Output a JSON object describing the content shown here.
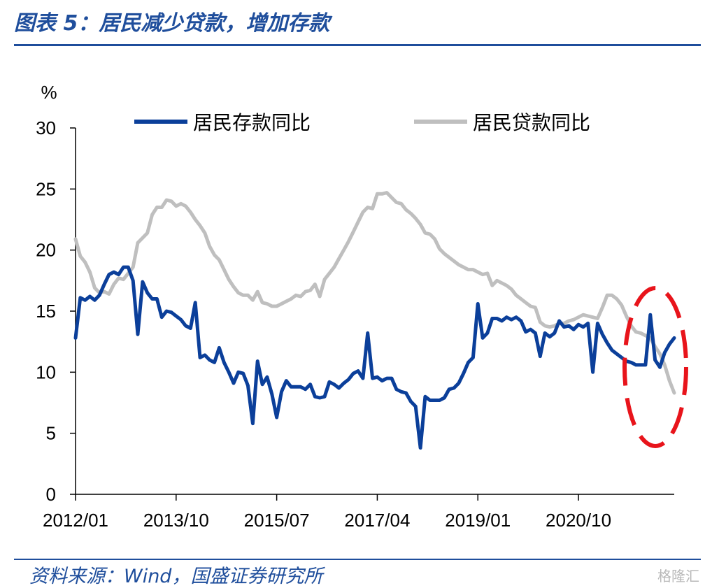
{
  "header": {
    "title": "图表 5：居民减少贷款，增加存款"
  },
  "footer": {
    "source": "资料来源：Wind，国盛证券研究所",
    "watermark": "格隆汇"
  },
  "chart_data": {
    "type": "line",
    "title": "图表 5：居民减少贷款，增加存款",
    "ylabel": "%",
    "ylim": [
      0,
      30
    ],
    "yticks": [
      0,
      5,
      10,
      15,
      20,
      25,
      30
    ],
    "x_tick_labels": [
      "2012/01",
      "2013/10",
      "2015/07",
      "2017/04",
      "2019/01",
      "2020/10"
    ],
    "x_tick_positions": [
      0,
      21,
      42,
      63,
      84,
      105
    ],
    "x_range": [
      0,
      125
    ],
    "legend_position": "top",
    "colors": {
      "deposit": "#0b3f9a",
      "loan": "#bfbfbf",
      "highlight": "#e8141b",
      "accent": "#1f4e9c"
    },
    "series": [
      {
        "name": "居民存款同比",
        "x": [
          0,
          1,
          2,
          3,
          4,
          5,
          6,
          7,
          8,
          9,
          10,
          11,
          12,
          13,
          14,
          15,
          16,
          17,
          18,
          19,
          20,
          21,
          22,
          23,
          24,
          25,
          26,
          27,
          28,
          29,
          30,
          31,
          32,
          33,
          34,
          35,
          36,
          37,
          38,
          39,
          40,
          41,
          42,
          43,
          44,
          45,
          46,
          47,
          48,
          49,
          50,
          51,
          52,
          53,
          54,
          55,
          56,
          57,
          58,
          59,
          60,
          61,
          62,
          63,
          64,
          65,
          66,
          67,
          68,
          69,
          70,
          71,
          72,
          73,
          74,
          75,
          76,
          77,
          78,
          79,
          80,
          81,
          82,
          83,
          84,
          85,
          86,
          87,
          88,
          89,
          90,
          91,
          92,
          93,
          94,
          95,
          96,
          97,
          98,
          99,
          100,
          101,
          102,
          103,
          104,
          105,
          106,
          107,
          108,
          109,
          110,
          111,
          112,
          113,
          114,
          115,
          116,
          117,
          118,
          119,
          120,
          121,
          122,
          123,
          124,
          125
        ],
        "values": [
          12.8,
          16.1,
          15.9,
          16.2,
          15.9,
          16.3,
          17.2,
          18.0,
          18.2,
          18.0,
          18.6,
          18.6,
          17.5,
          13.1,
          17.4,
          16.5,
          16.0,
          16.0,
          14.5,
          15.0,
          14.9,
          14.6,
          14.3,
          13.8,
          13.6,
          15.7,
          11.2,
          11.4,
          11.0,
          10.8,
          12.0,
          10.8,
          10.0,
          9.1,
          10.0,
          9.9,
          8.9,
          5.8,
          10.9,
          9.0,
          9.6,
          8.2,
          6.3,
          8.4,
          9.3,
          8.8,
          8.8,
          8.8,
          8.6,
          9.0,
          8.0,
          7.9,
          8.0,
          9.2,
          9.0,
          8.7,
          9.1,
          9.4,
          9.9,
          10.1,
          9.5,
          13.2,
          9.5,
          9.6,
          9.3,
          9.5,
          9.5,
          8.6,
          8.4,
          8.3,
          7.6,
          7.2,
          3.8,
          8.0,
          7.7,
          7.7,
          7.7,
          7.9,
          8.6,
          8.7,
          9.1,
          9.9,
          10.8,
          11.2,
          15.6,
          12.8,
          13.2,
          14.4,
          14.4,
          14.2,
          14.5,
          14.3,
          14.5,
          14.2,
          13.3,
          13.5,
          13.2,
          11.3,
          13.2,
          12.9,
          13.2,
          14.2,
          13.7,
          13.8,
          13.5,
          13.9,
          13.7,
          14.0,
          10.0,
          14.0,
          13.1,
          12.4,
          11.8,
          11.5,
          11.2,
          10.9,
          10.8,
          10.6,
          10.6,
          10.6,
          14.7,
          11.0,
          10.4,
          11.6,
          12.3,
          12.8
        ]
      },
      {
        "name": "居民贷款同比",
        "x": [
          0,
          1,
          2,
          3,
          4,
          5,
          6,
          7,
          8,
          9,
          10,
          11,
          12,
          13,
          14,
          15,
          16,
          17,
          18,
          19,
          20,
          21,
          22,
          23,
          24,
          25,
          26,
          27,
          28,
          29,
          30,
          31,
          32,
          33,
          34,
          35,
          36,
          37,
          38,
          39,
          40,
          41,
          42,
          43,
          44,
          45,
          46,
          47,
          48,
          49,
          50,
          51,
          52,
          53,
          54,
          55,
          56,
          57,
          58,
          59,
          60,
          61,
          62,
          63,
          64,
          65,
          66,
          67,
          68,
          69,
          70,
          71,
          72,
          73,
          74,
          75,
          76,
          77,
          78,
          79,
          80,
          81,
          82,
          83,
          84,
          85,
          86,
          87,
          88,
          89,
          90,
          91,
          92,
          93,
          94,
          95,
          96,
          97,
          98,
          99,
          100,
          101,
          102,
          103,
          104,
          105,
          106,
          107,
          108,
          109,
          110,
          111,
          112,
          113,
          114,
          115,
          116,
          117,
          118,
          119,
          120,
          121,
          122,
          123,
          124,
          125
        ],
        "values": [
          20.9,
          19.5,
          19.0,
          18.2,
          16.9,
          16.5,
          16.6,
          16.4,
          17.2,
          17.7,
          17.6,
          18.1,
          18.6,
          20.6,
          21.0,
          21.4,
          22.9,
          23.5,
          23.5,
          24.1,
          24.0,
          23.6,
          23.8,
          23.6,
          23.1,
          22.5,
          22.0,
          21.4,
          20.3,
          19.6,
          19.2,
          18.4,
          17.6,
          17.0,
          16.5,
          16.3,
          16.3,
          15.9,
          16.6,
          15.7,
          15.6,
          15.4,
          15.4,
          15.6,
          15.8,
          16.0,
          16.3,
          16.2,
          16.6,
          16.7,
          17.2,
          16.2,
          17.6,
          18.1,
          18.6,
          19.3,
          20.0,
          20.7,
          21.5,
          22.3,
          23.1,
          23.5,
          23.4,
          24.6,
          24.6,
          24.7,
          24.3,
          23.9,
          23.8,
          23.3,
          23.0,
          22.6,
          22.1,
          21.4,
          21.3,
          20.9,
          20.1,
          19.7,
          19.4,
          19.1,
          18.8,
          18.6,
          18.4,
          18.4,
          18.2,
          18.0,
          18.1,
          17.1,
          17.5,
          17.3,
          17.1,
          16.8,
          16.3,
          16.0,
          15.7,
          15.4,
          15.3,
          14.1,
          13.8,
          13.7,
          13.8,
          14.0,
          14.0,
          14.2,
          14.3,
          14.5,
          14.7,
          14.6,
          14.5,
          14.4,
          15.3,
          16.3,
          16.3,
          16.0,
          15.5,
          14.6,
          13.8,
          13.3,
          13.2,
          13.0,
          12.8,
          12.1,
          11.5,
          10.6,
          9.3,
          8.3
        ]
      }
    ]
  }
}
